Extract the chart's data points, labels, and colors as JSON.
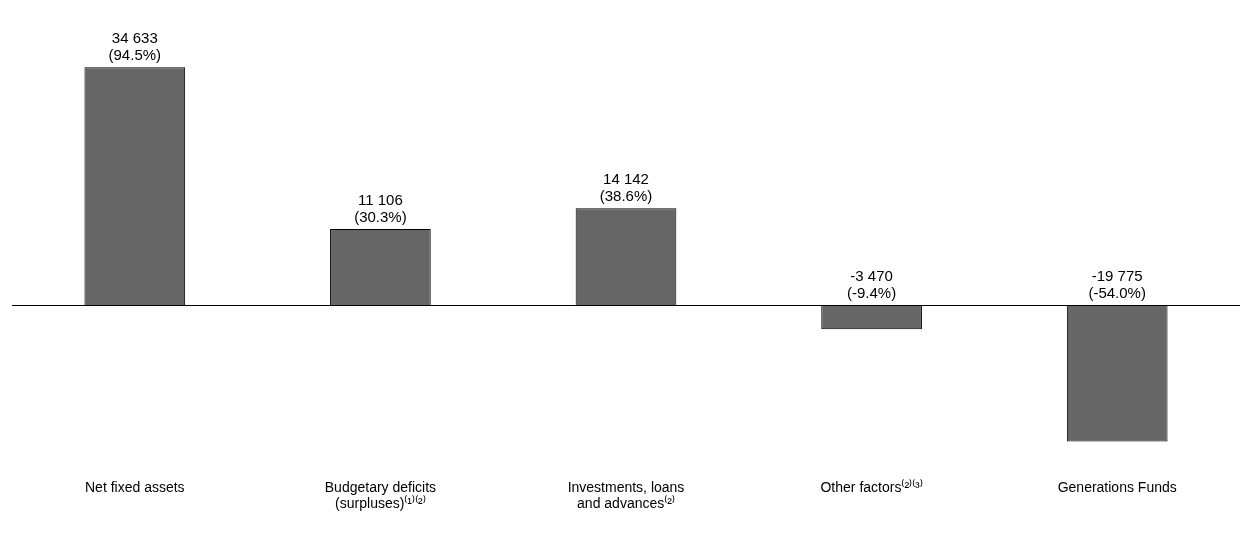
{
  "chart_data": {
    "type": "bar",
    "categories": [
      "Net fixed assets",
      "Budgetary deficits\n(surpluses)⁽¹⁾⁽²⁾",
      "Investments, loans\nand advances⁽²⁾",
      "Other factors⁽²⁾⁽³⁾",
      "Generations Funds"
    ],
    "values": [
      34633,
      11106,
      14142,
      -3470,
      -19775
    ],
    "color": "#666666",
    "value_labels": [
      "34 633\n(94.5%)",
      "11 106\n(30.3%)",
      "14 142\n(38.6%)",
      "-3 470\n(-9.4%)",
      "-19 775\n(-54.0%)"
    ],
    "grid": false,
    "legend": false
  }
}
